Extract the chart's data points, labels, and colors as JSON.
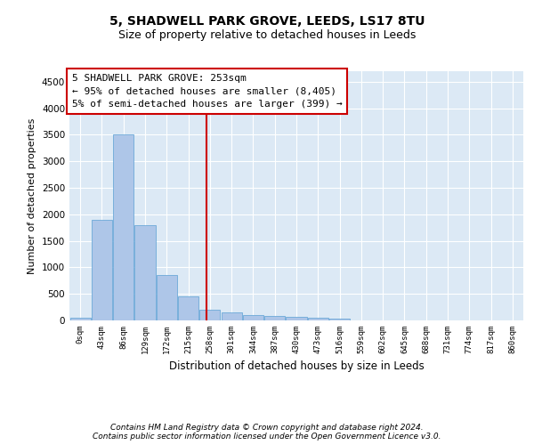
{
  "title_line1": "5, SHADWELL PARK GROVE, LEEDS, LS17 8TU",
  "title_line2": "Size of property relative to detached houses in Leeds",
  "xlabel": "Distribution of detached houses by size in Leeds",
  "ylabel": "Number of detached properties",
  "footnote": "Contains HM Land Registry data © Crown copyright and database right 2024.\nContains public sector information licensed under the Open Government Licence v3.0.",
  "bar_labels": [
    "0sqm",
    "43sqm",
    "86sqm",
    "129sqm",
    "172sqm",
    "215sqm",
    "258sqm",
    "301sqm",
    "344sqm",
    "387sqm",
    "430sqm",
    "473sqm",
    "516sqm",
    "559sqm",
    "602sqm",
    "645sqm",
    "688sqm",
    "731sqm",
    "774sqm",
    "817sqm",
    "860sqm"
  ],
  "bar_values": [
    50,
    1900,
    3500,
    1800,
    850,
    450,
    200,
    150,
    105,
    80,
    65,
    55,
    30,
    5,
    3,
    2,
    1,
    1,
    0,
    0,
    0
  ],
  "bar_color": "#aec6e8",
  "bar_edgecolor": "#5a9fd4",
  "vline_x": 5.85,
  "vline_color": "#cc0000",
  "annotation_text_line1": "5 SHADWELL PARK GROVE: 253sqm",
  "annotation_text_line2": "← 95% of detached houses are smaller (8,405)",
  "annotation_text_line3": "5% of semi-detached houses are larger (399) →",
  "ylim": [
    0,
    4700
  ],
  "yticks": [
    0,
    500,
    1000,
    1500,
    2000,
    2500,
    3000,
    3500,
    4000,
    4500
  ],
  "bg_color": "#dce9f5",
  "fig_bg_color": "#ffffff",
  "title1_fontsize": 10,
  "title2_fontsize": 9,
  "annotation_fontsize": 8,
  "footnote_fontsize": 6.5,
  "ylabel_fontsize": 8,
  "xlabel_fontsize": 8.5
}
